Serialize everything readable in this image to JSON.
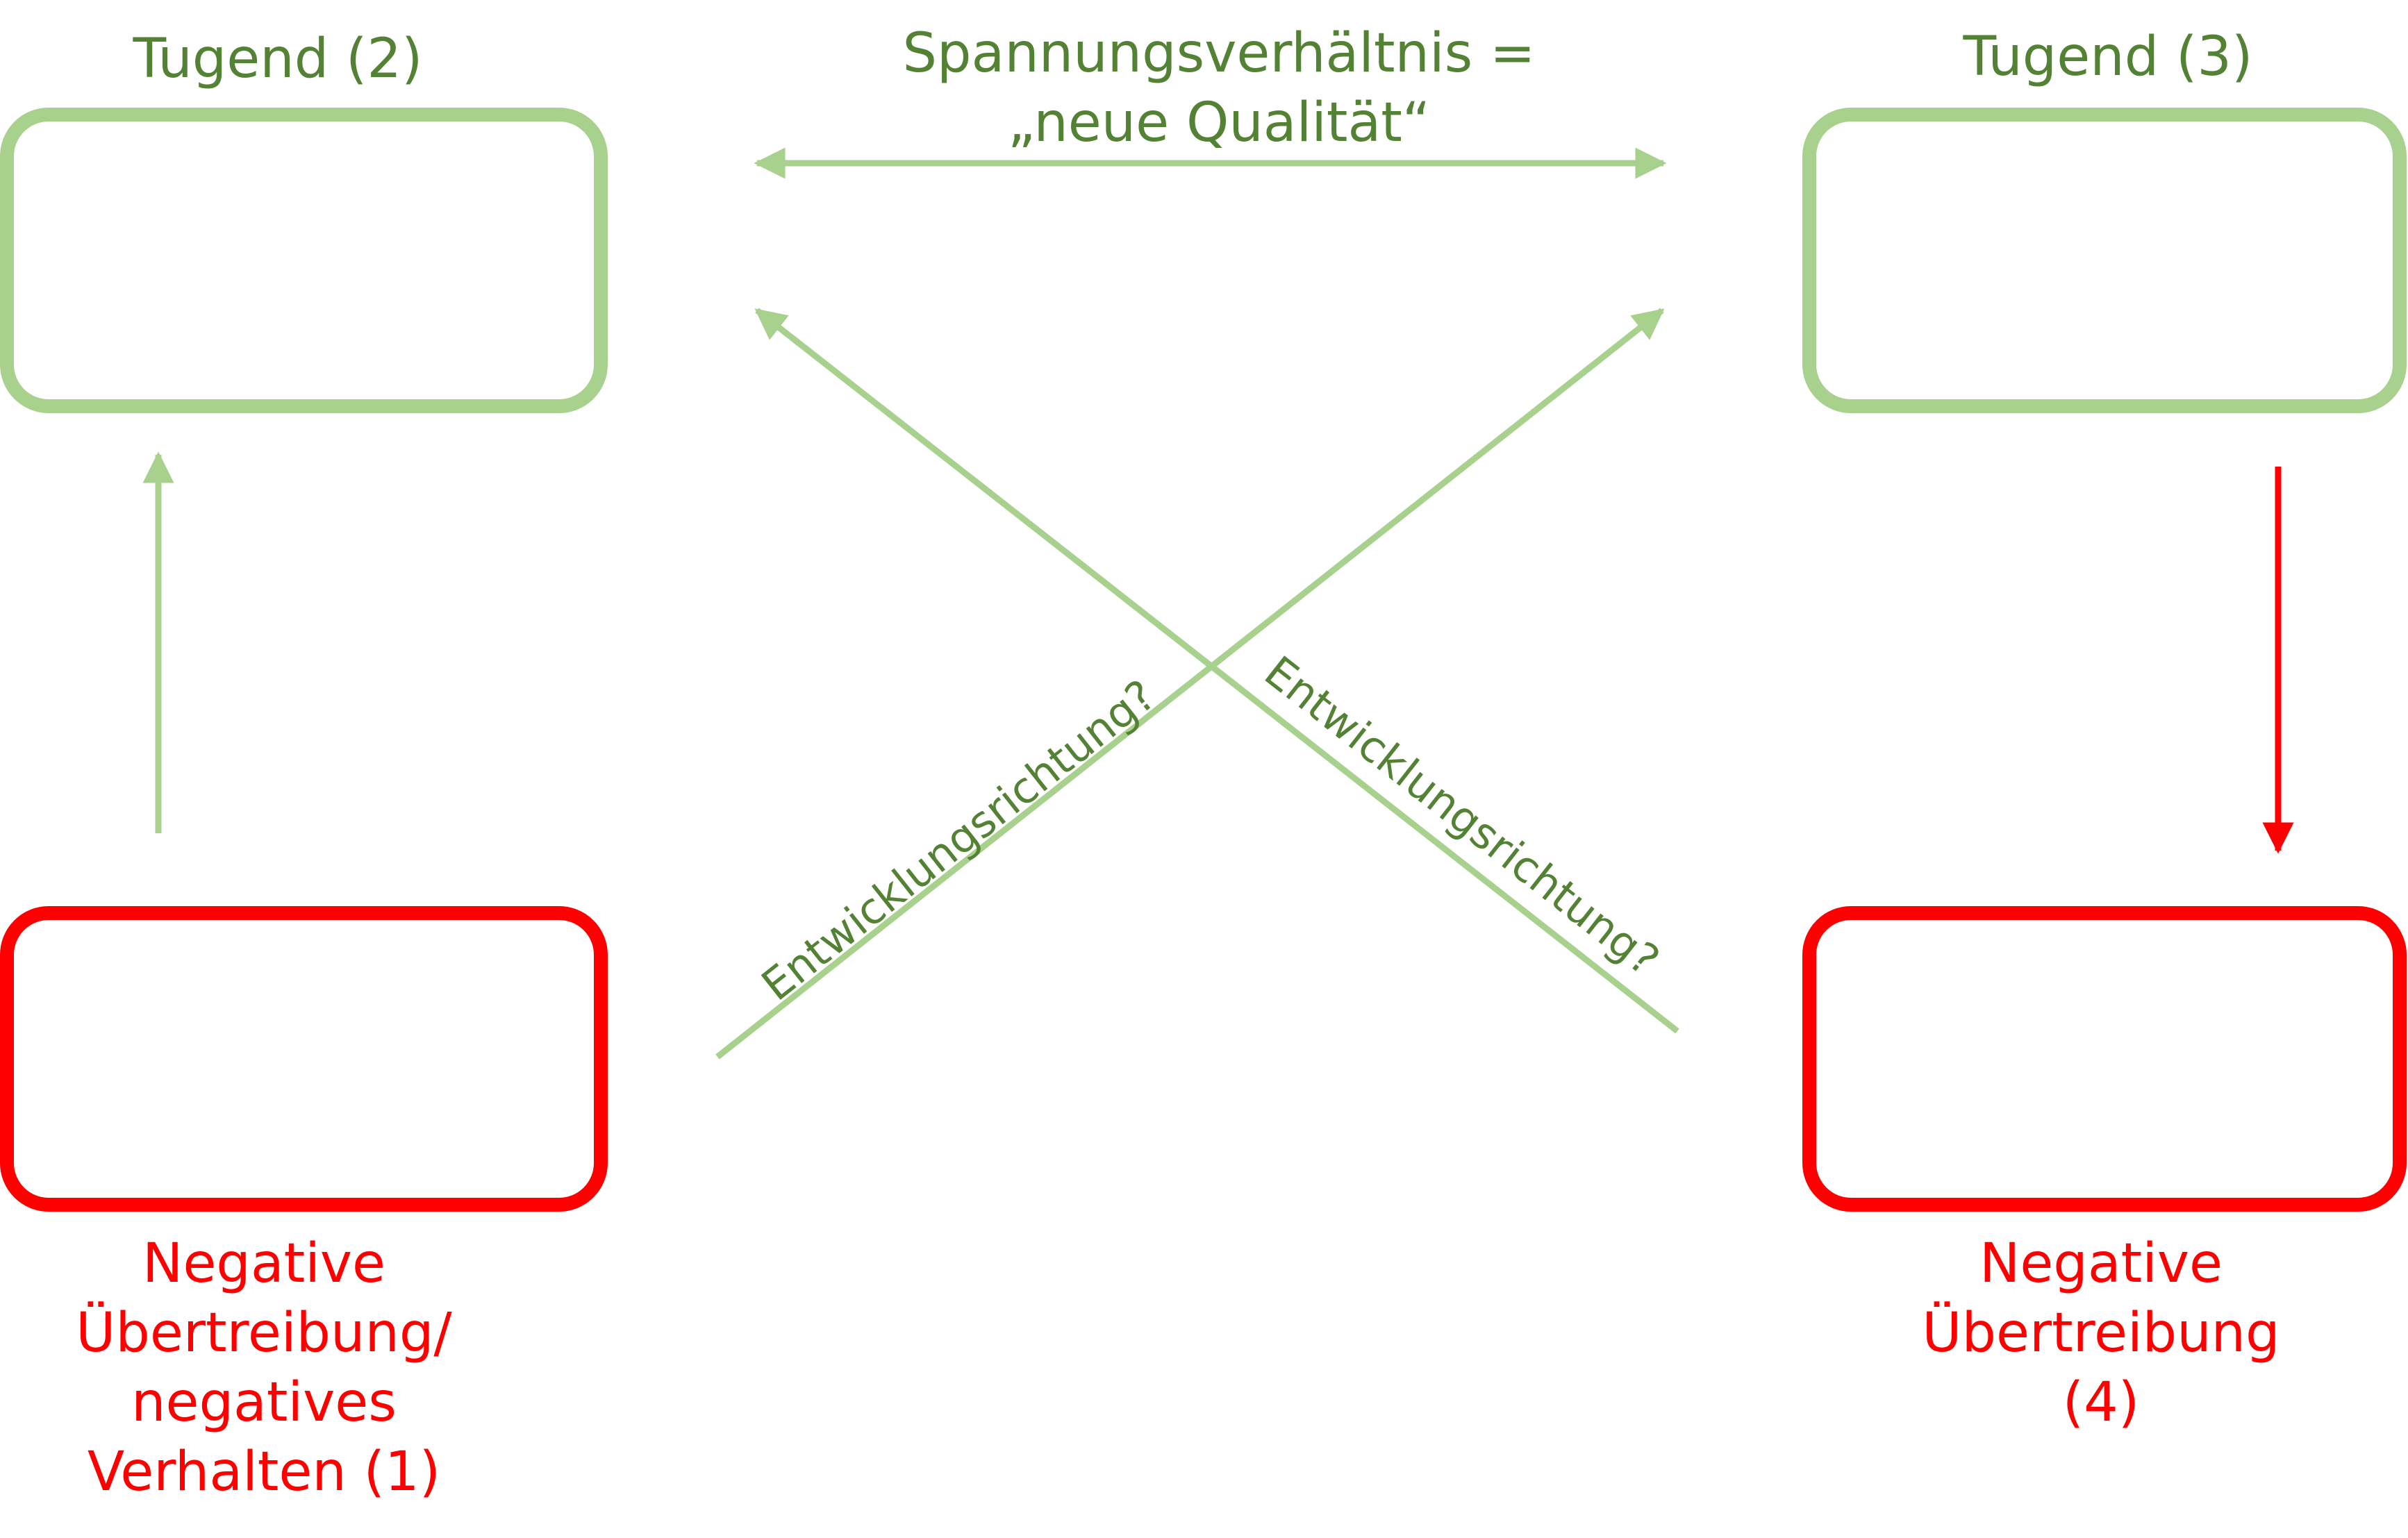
{
  "diagram": {
    "top_left_label": "Tugend (2)",
    "top_right_label": "Tugend (3)",
    "top_arrow_label_line1": "Spannungsverhältnis =",
    "top_arrow_label_line2": "„neue Qualität“",
    "cross_label_left": "Entwicklungsrichtung?",
    "cross_label_right": "Entwicklungsrichtung?",
    "bottom_left_label": {
      "line1": "Negative",
      "line2": "Übertreibung/",
      "line3": "negatives",
      "line4": "Verhalten (1)"
    },
    "bottom_right_label": {
      "line1": "Negative",
      "line2": "Übertreibung",
      "line3": "(4)"
    }
  },
  "colors": {
    "virtue_green": "#a9d18e",
    "label_green": "#548235",
    "negative_red": "#ff0000"
  }
}
